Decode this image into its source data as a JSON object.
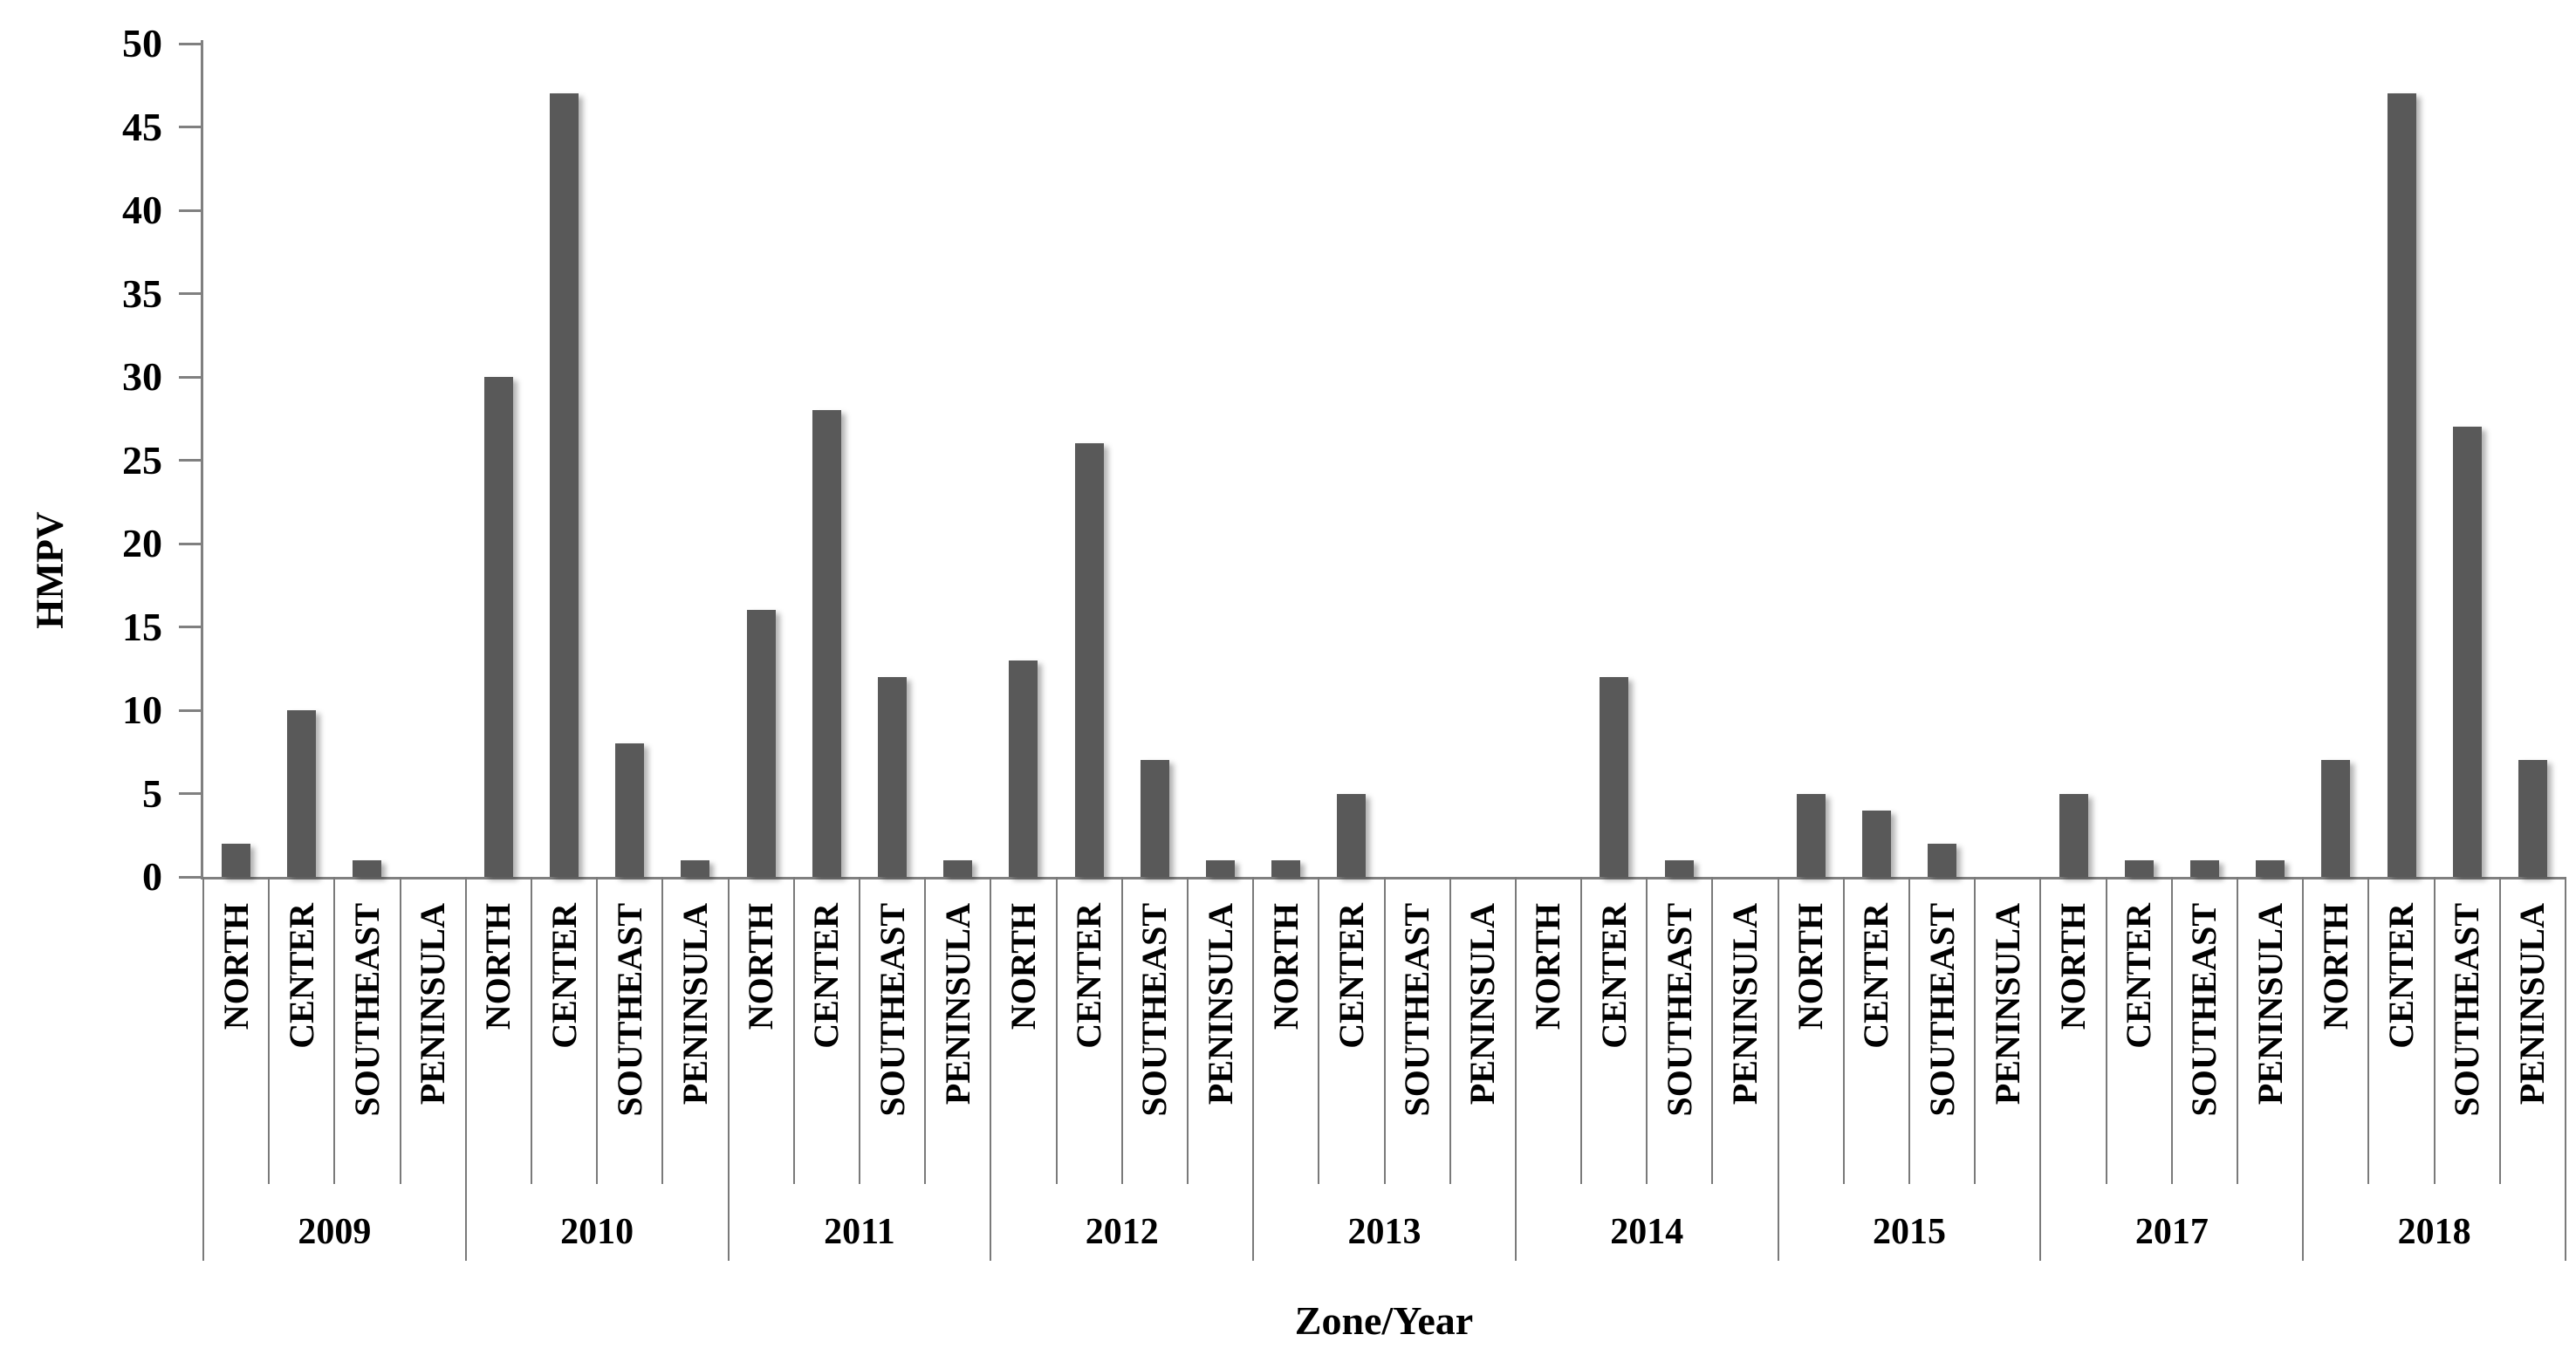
{
  "chart_data": {
    "type": "bar",
    "title": "",
    "xlabel": "Zone/Year",
    "ylabel": "HMPV",
    "ylim": [
      0,
      50
    ],
    "yticks": [
      0,
      5,
      10,
      15,
      20,
      25,
      30,
      35,
      40,
      45,
      50
    ],
    "grid": "off",
    "legend": "none",
    "zones": [
      "NORTH",
      "CENTER",
      "SOUTHEAST",
      "PENINSULA"
    ],
    "series": [
      {
        "year": "2009",
        "values": [
          2,
          10,
          1,
          0
        ]
      },
      {
        "year": "2010",
        "values": [
          30,
          47,
          8,
          1
        ]
      },
      {
        "year": "2011",
        "values": [
          16,
          28,
          12,
          1
        ]
      },
      {
        "year": "2012",
        "values": [
          13,
          26,
          7,
          1
        ]
      },
      {
        "year": "2013",
        "values": [
          1,
          5,
          0,
          0
        ]
      },
      {
        "year": "2014",
        "values": [
          0,
          12,
          1,
          0
        ]
      },
      {
        "year": "2015",
        "values": [
          5,
          4,
          2,
          0
        ]
      },
      {
        "year": "2017",
        "values": [
          5,
          1,
          1,
          1
        ]
      },
      {
        "year": "2018",
        "values": [
          7,
          47,
          27,
          7
        ]
      }
    ],
    "colors": {
      "bar": "#595959",
      "axis": "#808080",
      "separator": "#7a7a7a",
      "text": "#000000"
    }
  }
}
